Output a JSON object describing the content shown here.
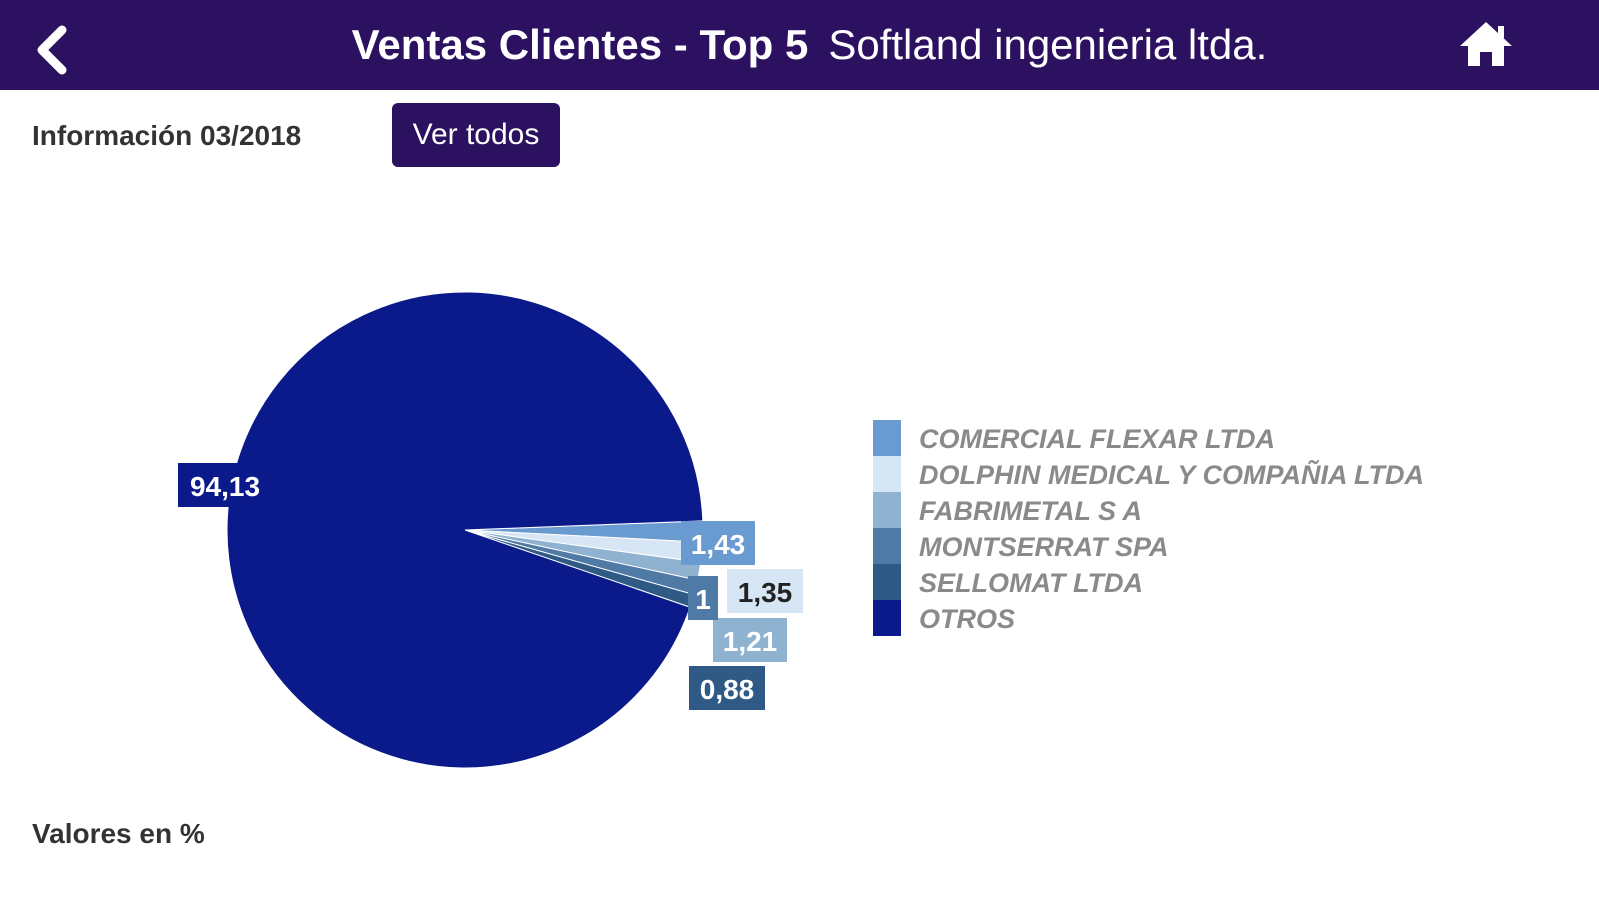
{
  "header": {
    "title": "Ventas Clientes - Top 5",
    "company": "Softland ingenieria ltda.",
    "back_icon": "chevron-left-icon",
    "home_icon": "home-icon"
  },
  "info": {
    "label": "Información 03/2018",
    "button_label": "Ver todos"
  },
  "footer": {
    "note": "Valores en %"
  },
  "colors": {
    "header_bg": "#2b1160",
    "otros": "#0a1a8a"
  },
  "chart_data": {
    "type": "pie",
    "title": "",
    "legend_position": "right",
    "slices": [
      {
        "name": "COMERCIAL FLEXAR LTDA",
        "value": 1.43,
        "label": "1,43",
        "color": "#6a9bd0"
      },
      {
        "name": "DOLPHIN MEDICAL Y COMPAÑIA LTDA",
        "value": 1.35,
        "label": "1,35",
        "color": "#d7e6f4"
      },
      {
        "name": "FABRIMETAL S A",
        "value": 1.21,
        "label": "1,21",
        "color": "#8fb2d1"
      },
      {
        "name": "MONTSERRAT SPA",
        "value": 1,
        "label": "1",
        "color": "#4f7aa6"
      },
      {
        "name": "SELLOMAT LTDA",
        "value": 0.88,
        "label": "0,88",
        "color": "#2f5a85"
      },
      {
        "name": "OTROS",
        "value": 94.13,
        "label": "94,13",
        "color": "#0a1a8a"
      }
    ]
  }
}
